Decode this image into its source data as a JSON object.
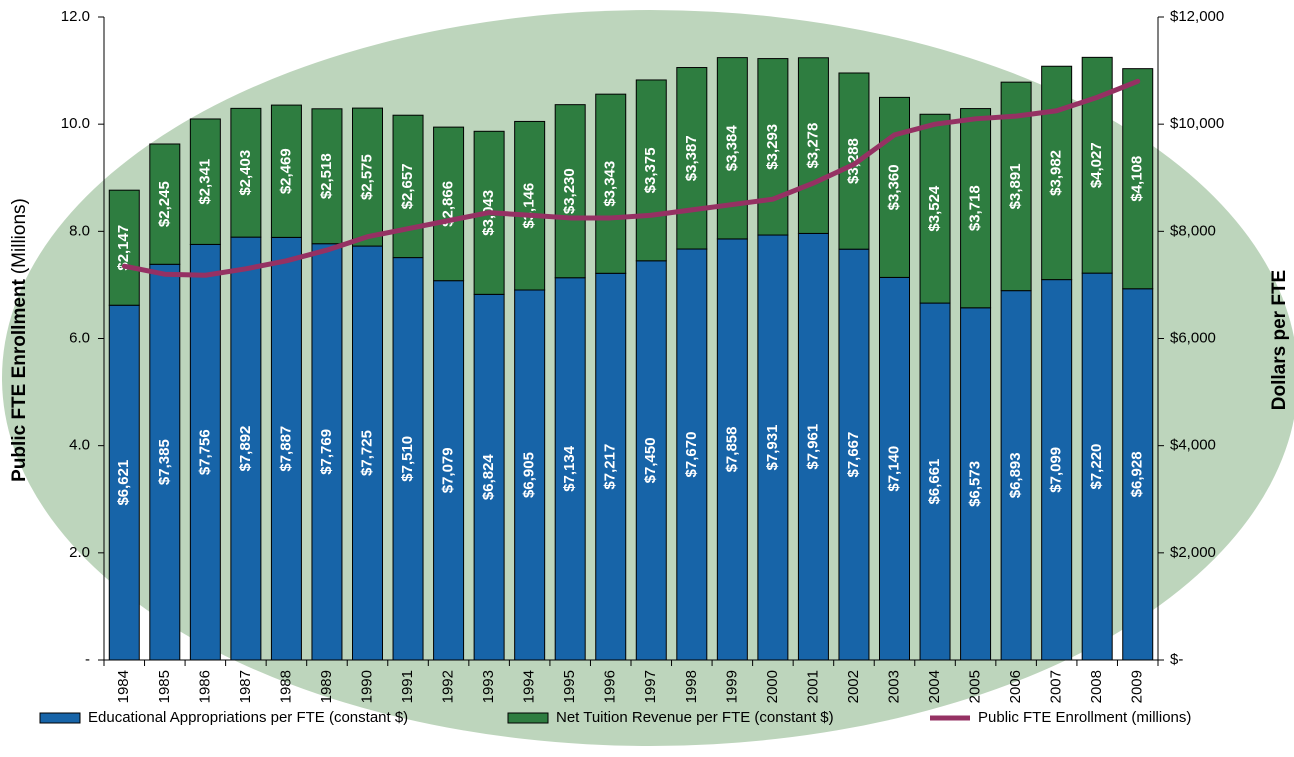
{
  "chart_data": {
    "type": "bar",
    "y_label": "Public FTE Enrollment",
    "y_label_unit": "(Millions)",
    "y2_label": "Dollars per FTE",
    "categories": [
      "1984",
      "1985",
      "1986",
      "1987",
      "1988",
      "1989",
      "1990",
      "1991",
      "1992",
      "1993",
      "1994",
      "1995",
      "1996",
      "1997",
      "1998",
      "1999",
      "2000",
      "2001",
      "2002",
      "2003",
      "2004",
      "2005",
      "2006",
      "2007",
      "2008",
      "2009"
    ],
    "series": [
      {
        "name": "Educational Appropriations per FTE (constant $)",
        "type": "bar",
        "axis": "y2",
        "color": "#1764a8",
        "values": [
          6621,
          7385,
          7756,
          7892,
          7887,
          7769,
          7725,
          7510,
          7079,
          6824,
          6905,
          7134,
          7217,
          7450,
          7670,
          7858,
          7931,
          7961,
          7667,
          7140,
          6661,
          6573,
          6893,
          7099,
          7220,
          6928
        ],
        "value_labels": [
          "$6,621",
          "$7,385",
          "$7,756",
          "$7,892",
          "$7,887",
          "$7,769",
          "$7,725",
          "$7,510",
          "$7,079",
          "$6,824",
          "$6,905",
          "$7,134",
          "$7,217",
          "$7,450",
          "$7,670",
          "$7,858",
          "$7,931",
          "$7,961",
          "$7,667",
          "$7,140",
          "$6,661",
          "$6,573",
          "$6,893",
          "$7,099",
          "$7,220",
          "$6,928"
        ]
      },
      {
        "name": "Net Tuition Revenue per FTE (constant $)",
        "type": "bar",
        "axis": "y2",
        "color": "#2e7d40",
        "values": [
          2147,
          2245,
          2341,
          2403,
          2469,
          2518,
          2575,
          2657,
          2866,
          3043,
          3146,
          3230,
          3343,
          3375,
          3387,
          3384,
          3293,
          3278,
          3288,
          3360,
          3524,
          3718,
          3891,
          3982,
          4027,
          4108
        ],
        "value_labels": [
          "$2,147",
          "$2,245",
          "$2,341",
          "$2,403",
          "$2,469",
          "$2,518",
          "$2,575",
          "$2,657",
          "$2,866",
          "$3,043",
          "$3,146",
          "$3,230",
          "$3,343",
          "$3,375",
          "$3,387",
          "$3,384",
          "$3,293",
          "$3,278",
          "$3,288",
          "$3,360",
          "$3,524",
          "$3,718",
          "$3,891",
          "$3,982",
          "$4,027",
          "$4,108"
        ]
      },
      {
        "name": "Public FTE Enrollment (millions)",
        "type": "line",
        "axis": "y",
        "color": "#953163",
        "values": [
          7.35,
          7.2,
          7.18,
          7.3,
          7.45,
          7.65,
          7.9,
          8.05,
          8.2,
          8.35,
          8.3,
          8.25,
          8.25,
          8.3,
          8.4,
          8.5,
          8.6,
          8.9,
          9.25,
          9.8,
          10.0,
          10.1,
          10.15,
          10.25,
          10.5,
          10.8
        ]
      }
    ],
    "ylim": [
      0,
      12
    ],
    "yticks": [
      {
        "value": 0,
        "label": "-"
      },
      {
        "value": 2,
        "label": "2.0"
      },
      {
        "value": 4,
        "label": "4.0"
      },
      {
        "value": 6,
        "label": "6.0"
      },
      {
        "value": 8,
        "label": "8.0"
      },
      {
        "value": 10,
        "label": "10.0"
      },
      {
        "value": 12,
        "label": "12.0"
      }
    ],
    "y2lim": [
      0,
      12000
    ],
    "y2ticks": [
      {
        "value": 0,
        "label": "$-"
      },
      {
        "value": 2000,
        "label": "$2,000"
      },
      {
        "value": 4000,
        "label": "$4,000"
      },
      {
        "value": 6000,
        "label": "$6,000"
      },
      {
        "value": 8000,
        "label": "$8,000"
      },
      {
        "value": 10000,
        "label": "$10,000"
      },
      {
        "value": 12000,
        "label": "$12,000"
      }
    ],
    "legend": "bottom"
  }
}
